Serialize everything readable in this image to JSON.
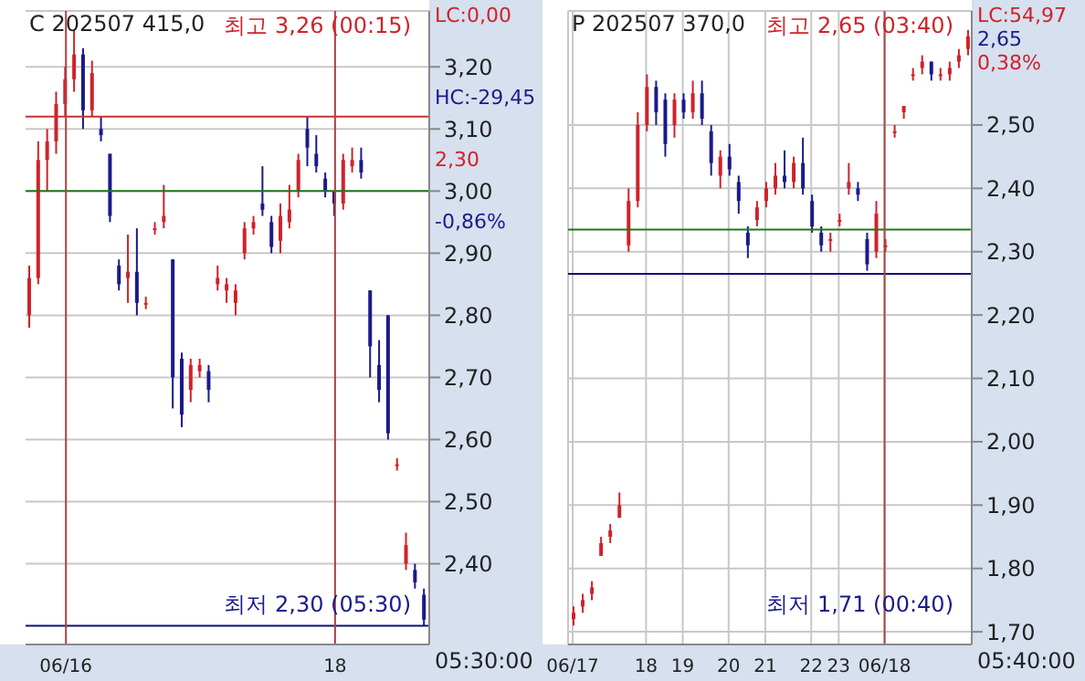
{
  "chart_data": [
    {
      "type": "candlestick",
      "title": "C 202507 415,0",
      "categories": [
        null,
        null,
        null,
        null,
        "06/16",
        null,
        null,
        null,
        null,
        null,
        null,
        null,
        null,
        null,
        null,
        null,
        null,
        null,
        null,
        null,
        null,
        null,
        null,
        null,
        null,
        null,
        null,
        null,
        null,
        null,
        null,
        null,
        null,
        null,
        "18",
        null,
        null,
        null,
        null,
        null,
        null,
        null,
        null,
        null,
        null
      ],
      "ohlc": [
        [
          2.8,
          2.88,
          2.78,
          2.86
        ],
        [
          2.86,
          3.08,
          2.85,
          3.05
        ],
        [
          3.05,
          3.1,
          3.0,
          3.08
        ],
        [
          3.08,
          3.16,
          3.06,
          3.14
        ],
        [
          3.14,
          3.2,
          3.12,
          3.18
        ],
        [
          3.18,
          3.26,
          3.16,
          3.22
        ],
        [
          3.22,
          3.23,
          3.1,
          3.13
        ],
        [
          3.13,
          3.21,
          3.12,
          3.19
        ],
        [
          3.1,
          3.12,
          3.08,
          3.09
        ],
        [
          3.06,
          3.06,
          2.95,
          2.96
        ],
        [
          2.88,
          2.89,
          2.84,
          2.85
        ],
        [
          2.86,
          2.93,
          2.82,
          2.87
        ],
        [
          2.87,
          2.94,
          2.8,
          2.82
        ],
        [
          2.82,
          2.83,
          2.81,
          2.82
        ],
        [
          2.94,
          2.95,
          2.93,
          2.94
        ],
        [
          2.95,
          3.01,
          2.94,
          2.96
        ],
        [
          2.89,
          2.89,
          2.65,
          2.7
        ],
        [
          2.73,
          2.74,
          2.62,
          2.64
        ],
        [
          2.68,
          2.73,
          2.66,
          2.72
        ],
        [
          2.71,
          2.73,
          2.7,
          2.72
        ],
        [
          2.71,
          2.72,
          2.66,
          2.68
        ],
        [
          2.85,
          2.88,
          2.84,
          2.86
        ],
        [
          2.84,
          2.86,
          2.82,
          2.85
        ],
        [
          2.82,
          2.85,
          2.8,
          2.84
        ],
        [
          2.9,
          2.95,
          2.89,
          2.94
        ],
        [
          2.94,
          2.96,
          2.93,
          2.95
        ],
        [
          2.98,
          3.04,
          2.96,
          2.97
        ],
        [
          2.95,
          2.96,
          2.9,
          2.91
        ],
        [
          2.92,
          2.98,
          2.9,
          2.96
        ],
        [
          2.95,
          3.01,
          2.94,
          2.97
        ],
        [
          3.0,
          3.06,
          2.99,
          3.05
        ],
        [
          3.1,
          3.12,
          3.04,
          3.07
        ],
        [
          3.06,
          3.09,
          3.03,
          3.04
        ],
        [
          3.02,
          3.03,
          2.99,
          3.0
        ],
        [
          3.0,
          3.0,
          2.96,
          2.98
        ],
        [
          2.98,
          3.06,
          2.97,
          3.05
        ],
        [
          3.04,
          3.07,
          3.03,
          3.05
        ],
        [
          3.05,
          3.07,
          3.02,
          3.03
        ],
        [
          2.84,
          2.84,
          2.7,
          2.75
        ],
        [
          2.72,
          2.76,
          2.66,
          2.68
        ],
        [
          2.8,
          2.8,
          2.6,
          2.61
        ],
        [
          2.56,
          2.57,
          2.55,
          2.56
        ],
        [
          2.4,
          2.45,
          2.39,
          2.43
        ],
        [
          2.39,
          2.4,
          2.36,
          2.37
        ],
        [
          2.35,
          2.36,
          2.3,
          2.31
        ]
      ],
      "ylim": [
        2.27,
        3.29
      ],
      "yticks": [
        {
          "value": 2.4,
          "label": "2,40"
        },
        {
          "value": 2.5,
          "label": "2,50"
        },
        {
          "value": 2.6,
          "label": "2,60"
        },
        {
          "value": 2.7,
          "label": "2,70"
        },
        {
          "value": 2.8,
          "label": "2,80"
        },
        {
          "value": 2.9,
          "label": "2,90"
        },
        {
          "value": 3.0,
          "label": "3,00"
        },
        {
          "value": 3.1,
          "label": "3,10"
        },
        {
          "value": 3.2,
          "label": "3,20"
        }
      ],
      "grid": "y",
      "ref_lines": [
        {
          "axis": "y",
          "value": 3.12,
          "color": "#c83232"
        },
        {
          "axis": "y",
          "value": 3.0,
          "color": "#1e781e"
        },
        {
          "axis": "y",
          "value": 2.3,
          "color": "#10107a"
        },
        {
          "axis": "x",
          "value": "06/16",
          "color": "#b04040"
        },
        {
          "axis": "x",
          "value": "18",
          "color": "#b04040"
        }
      ],
      "annotations": [
        "최고 3,26 (00:15)",
        "최저 2,30 (05:30)",
        "LC:0,00",
        "HC:-29,45",
        "2,30",
        "-0,86%",
        "05:30:00"
      ]
    },
    {
      "type": "candlestick",
      "title": "P 202507 370,0",
      "categories": [
        "06/17",
        null,
        null,
        null,
        null,
        null,
        null,
        null,
        "18",
        null,
        null,
        null,
        "19",
        null,
        null,
        null,
        null,
        "20",
        null,
        null,
        null,
        "21",
        null,
        null,
        null,
        null,
        "22",
        null,
        null,
        "23",
        null,
        null,
        null,
        null,
        "06/18",
        null,
        null,
        null,
        null,
        null,
        null,
        null,
        null,
        null
      ],
      "ohlc": [
        [
          1.72,
          1.74,
          1.71,
          1.73
        ],
        [
          1.74,
          1.76,
          1.73,
          1.75
        ],
        [
          1.76,
          1.78,
          1.75,
          1.77
        ],
        [
          1.82,
          1.85,
          1.82,
          1.84
        ],
        [
          1.85,
          1.87,
          1.84,
          1.86
        ],
        [
          1.88,
          1.92,
          1.88,
          1.9
        ],
        [
          2.31,
          2.4,
          2.3,
          2.38
        ],
        [
          2.38,
          2.52,
          2.37,
          2.5
        ],
        [
          2.5,
          2.58,
          2.49,
          2.56
        ],
        [
          2.56,
          2.57,
          2.5,
          2.52
        ],
        [
          2.54,
          2.55,
          2.45,
          2.47
        ],
        [
          2.5,
          2.55,
          2.48,
          2.54
        ],
        [
          2.54,
          2.55,
          2.51,
          2.52
        ],
        [
          2.52,
          2.57,
          2.51,
          2.55
        ],
        [
          2.55,
          2.57,
          2.5,
          2.51
        ],
        [
          2.49,
          2.5,
          2.42,
          2.44
        ],
        [
          2.42,
          2.46,
          2.4,
          2.45
        ],
        [
          2.45,
          2.47,
          2.42,
          2.43
        ],
        [
          2.41,
          2.42,
          2.36,
          2.38
        ],
        [
          2.33,
          2.34,
          2.29,
          2.31
        ],
        [
          2.35,
          2.38,
          2.34,
          2.37
        ],
        [
          2.38,
          2.41,
          2.37,
          2.4
        ],
        [
          2.4,
          2.44,
          2.39,
          2.42
        ],
        [
          2.42,
          2.46,
          2.4,
          2.41
        ],
        [
          2.41,
          2.45,
          2.4,
          2.44
        ],
        [
          2.44,
          2.48,
          2.39,
          2.4
        ],
        [
          2.38,
          2.39,
          2.33,
          2.34
        ],
        [
          2.33,
          2.34,
          2.3,
          2.31
        ],
        [
          2.32,
          2.33,
          2.3,
          2.32
        ],
        [
          2.35,
          2.36,
          2.34,
          2.35
        ],
        [
          2.4,
          2.44,
          2.39,
          2.41
        ],
        [
          2.4,
          2.41,
          2.38,
          2.39
        ],
        [
          2.32,
          2.33,
          2.27,
          2.28
        ],
        [
          2.3,
          2.38,
          2.29,
          2.36
        ],
        [
          2.31,
          2.32,
          2.3,
          2.31
        ],
        [
          2.49,
          2.5,
          2.48,
          2.49
        ],
        [
          2.52,
          2.53,
          2.51,
          2.53
        ],
        [
          2.58,
          2.59,
          2.57,
          2.58
        ],
        [
          2.59,
          2.61,
          2.58,
          2.6
        ],
        [
          2.6,
          2.6,
          2.57,
          2.58
        ],
        [
          2.58,
          2.59,
          2.57,
          2.58
        ],
        [
          2.58,
          2.6,
          2.57,
          2.59
        ],
        [
          2.6,
          2.62,
          2.59,
          2.61
        ],
        [
          2.62,
          2.65,
          2.61,
          2.64
        ]
      ],
      "ylim": [
        1.68,
        2.68
      ],
      "yticks": [
        {
          "value": 1.7,
          "label": "1,70"
        },
        {
          "value": 1.8,
          "label": "1,80"
        },
        {
          "value": 1.9,
          "label": "1,90"
        },
        {
          "value": 2.0,
          "label": "2,00"
        },
        {
          "value": 2.1,
          "label": "2,10"
        },
        {
          "value": 2.2,
          "label": "2,20"
        },
        {
          "value": 2.3,
          "label": "2,30"
        },
        {
          "value": 2.4,
          "label": "2,40"
        },
        {
          "value": 2.5,
          "label": "2,50"
        }
      ],
      "grid": true,
      "ref_lines": [
        {
          "axis": "y",
          "value": 2.335,
          "color": "#1e781e"
        },
        {
          "axis": "y",
          "value": 2.265,
          "color": "#10107a"
        },
        {
          "axis": "x",
          "value": "06/18",
          "color": "#b04040"
        }
      ],
      "annotations": [
        "최고 2,65 (03:40)",
        "최저 1,71 (00:40)",
        "LC:54,97",
        "2,65",
        "0,38%",
        "05:40:00"
      ]
    }
  ]
}
